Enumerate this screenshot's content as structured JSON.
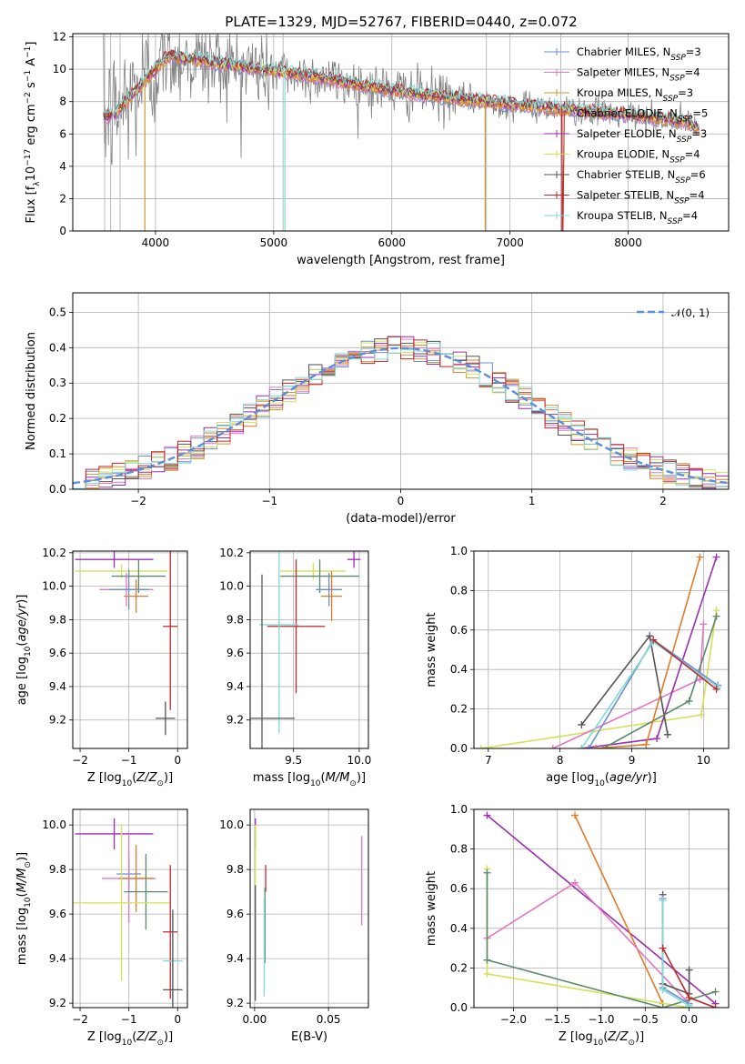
{
  "figure": {
    "title": "PLATE=1329, MJD=52767, FIBERID=0440, z=0.072"
  },
  "legend": {
    "entries": [
      {
        "pre": "Chabrier MILES, N",
        "sub": "SSP",
        "post": "=3",
        "color": "#6a8fcf"
      },
      {
        "pre": "Salpeter MILES, N",
        "sub": "SSP",
        "post": "=4",
        "color": "#e377c2"
      },
      {
        "pre": "Kroupa MILES, N",
        "sub": "SSP",
        "post": "=3",
        "color": "#c89a2e"
      },
      {
        "pre": "Chabrier ELODIE, N",
        "sub": "SSP",
        "post": "=5",
        "color": "#e07b2a"
      },
      {
        "pre": "Salpeter ELODIE, N",
        "sub": "SSP",
        "post": "=3",
        "color": "#9a2fb0"
      },
      {
        "pre": "Kroupa ELODIE, N",
        "sub": "SSP",
        "post": "=4",
        "color": "#d4e157"
      },
      {
        "pre": "Chabrier STELIB, N",
        "sub": "SSP",
        "post": "=6",
        "color": "#555555"
      },
      {
        "pre": "Salpeter STELIB, N",
        "sub": "SSP",
        "post": "=4",
        "color": "#c0282d"
      },
      {
        "pre": "Kroupa STELIB, N",
        "sub": "SSP",
        "post": "=4",
        "color": "#7fdad8"
      }
    ],
    "gauss_label": "𝒩(0, 1)"
  },
  "colors": {
    "data": "#808080",
    "gauss": "#5b8fd9",
    "grid": "#b0b0b0",
    "green": "#5a8a6a"
  },
  "chart_data": [
    {
      "id": "spectrum",
      "type": "line",
      "title": "PLATE=1329, MJD=52767, FIBERID=0440, z=0.072",
      "xlabel": "wavelength [Angstrom, rest frame]",
      "ylabel": "Flux [fλ10⁻¹⁷ erg cm⁻² s⁻¹ A⁻¹]",
      "xlim": [
        3300,
        8850
      ],
      "ylim": [
        0,
        12.2
      ],
      "xticks": [
        4000,
        5000,
        6000,
        7000,
        8000
      ],
      "yticks": [
        0,
        2,
        4,
        6,
        8,
        10,
        12
      ],
      "model_continuum": [
        [
          3550,
          7.0
        ],
        [
          3650,
          7.2
        ],
        [
          3800,
          8.4
        ],
        [
          3950,
          9.6
        ],
        [
          4100,
          10.8
        ],
        [
          4300,
          10.6
        ],
        [
          4500,
          10.4
        ],
        [
          4800,
          10.1
        ],
        [
          5000,
          9.9
        ],
        [
          5300,
          9.6
        ],
        [
          5600,
          9.2
        ],
        [
          6000,
          8.7
        ],
        [
          6400,
          8.3
        ],
        [
          6800,
          8.0
        ],
        [
          7200,
          7.7
        ],
        [
          7500,
          7.5
        ],
        [
          7800,
          7.3
        ],
        [
          8200,
          7.0
        ],
        [
          8500,
          6.7
        ],
        [
          8600,
          6.3
        ]
      ],
      "grid": true,
      "legend_position": "upper right"
    },
    {
      "id": "residuals",
      "type": "line",
      "xlabel": "(data-model)/error",
      "ylabel": "Normed distribution",
      "xlim": [
        -2.5,
        2.5
      ],
      "ylim": [
        0,
        0.555
      ],
      "xticks": [
        -2,
        -1,
        0,
        1,
        2
      ],
      "yticks": [
        0.0,
        0.1,
        0.2,
        0.3,
        0.4,
        0.5
      ],
      "bin_width": 0.1,
      "grid": true,
      "legend_position": "upper right"
    },
    {
      "id": "age-vs-Z",
      "type": "scatter",
      "xlabel": "Z [log₁₀(Z/Z⊙)]",
      "ylabel": "age  [log₁₀(age/yr)]",
      "xlim": [
        -2.15,
        0.2
      ],
      "ylim": [
        9.03,
        10.21
      ],
      "xticks": [
        -2,
        -1,
        0
      ],
      "yticks": [
        9.2,
        9.4,
        9.6,
        9.8,
        10.0,
        10.2
      ],
      "points": [
        {
          "x": -1.3,
          "y": 10.16,
          "xerr": 0.8,
          "yerr": 0.05,
          "color": "#9a2fb0"
        },
        {
          "x": -1.15,
          "y": 10.09,
          "xerr": 0.95,
          "yerr": 0.04,
          "color": "#d4e157"
        },
        {
          "x": -0.8,
          "y": 10.06,
          "xerr": 0.55,
          "yerr": 0.1,
          "color": "#5a8a6a"
        },
        {
          "x": -1.05,
          "y": 9.98,
          "xerr": 0.55,
          "yerr": 0.1,
          "color": "#e377c2"
        },
        {
          "x": -1.0,
          "y": 9.98,
          "xerr": 0.4,
          "yerr": 0.12,
          "color": "#6a8fcf"
        },
        {
          "x": -0.85,
          "y": 9.94,
          "xerr": 0.25,
          "yerr": 0.1,
          "color": "#e07b2a"
        },
        {
          "x": -0.15,
          "y": 9.76,
          "xerr": 0.15,
          "yerr": 0.5,
          "color": "#c0282d"
        },
        {
          "x": -0.25,
          "y": 9.21,
          "xerr": 0.2,
          "yerr": 0.1,
          "color": "#555555"
        }
      ],
      "grid": true
    },
    {
      "id": "age-vs-mass",
      "type": "scatter",
      "xlabel": "mass [log₁₀(M/M⊙)]",
      "ylabel": "",
      "xlim": [
        9.17,
        10.07
      ],
      "ylim": [
        9.03,
        10.21
      ],
      "xticks": [
        9.5,
        10.0
      ],
      "yticks": [
        9.2,
        9.4,
        9.6,
        9.8,
        10.0,
        10.2
      ],
      "points": [
        {
          "x": 9.96,
          "y": 10.16,
          "xerr": 0.05,
          "yerr": 0.05,
          "color": "#9a2fb0"
        },
        {
          "x": 9.65,
          "y": 10.09,
          "xerr": 0.25,
          "yerr": 0.05,
          "color": "#d4e157"
        },
        {
          "x": 9.7,
          "y": 10.06,
          "xerr": 0.3,
          "yerr": 0.1,
          "color": "#5a8a6a"
        },
        {
          "x": 9.77,
          "y": 9.98,
          "xerr": 0.1,
          "yerr": 0.1,
          "color": "#6a8fcf"
        },
        {
          "x": 9.79,
          "y": 9.94,
          "xerr": 0.08,
          "yerr": 0.15,
          "color": "#e07b2a"
        },
        {
          "x": 9.52,
          "y": 9.76,
          "xerr": 0.22,
          "yerr": 0.4,
          "color": "#c0282d"
        },
        {
          "x": 9.39,
          "y": 9.77,
          "xerr": 0.15,
          "yerr": 0.65,
          "color": "#7fdad8"
        },
        {
          "x": 9.26,
          "y": 9.21,
          "xerr": 0.25,
          "yerr": 0.86,
          "color": "#555555"
        }
      ],
      "grid": true
    },
    {
      "id": "mass-weight-vs-age",
      "type": "line",
      "xlabel": "age  [log₁₀(age/yr)]",
      "ylabel": "mass weight",
      "xlim": [
        6.8,
        10.35
      ],
      "ylim": [
        0,
        1.0
      ],
      "xticks": [
        7,
        8,
        9,
        10
      ],
      "yticks": [
        0.0,
        0.2,
        0.4,
        0.6,
        0.8,
        1.0
      ],
      "series": [
        {
          "color": "#d4e157",
          "x": [
            6.9,
            9.97,
            10.18
          ],
          "y": [
            0.0,
            0.17,
            0.7
          ]
        },
        {
          "color": "#e377c2",
          "x": [
            7.9,
            9.95,
            10.0
          ],
          "y": [
            0.0,
            0.35,
            0.63
          ]
        },
        {
          "color": "#9a2fb0",
          "x": [
            8.3,
            9.35,
            10.18
          ],
          "y": [
            0.0,
            0.05,
            0.97
          ]
        },
        {
          "color": "#555555",
          "x": [
            8.3,
            9.25,
            9.5
          ],
          "y": [
            0.12,
            0.57,
            0.07
          ]
        },
        {
          "color": "#5a8a6a",
          "x": [
            8.6,
            9.8,
            10.18
          ],
          "y": [
            0.0,
            0.24,
            0.67
          ]
        },
        {
          "color": "#e07b2a",
          "x": [
            8.5,
            9.2,
            9.95
          ],
          "y": [
            0.0,
            0.02,
            0.97
          ]
        },
        {
          "color": "#6a8fcf",
          "x": [
            8.4,
            9.3,
            10.2
          ],
          "y": [
            0.0,
            0.55,
            0.32
          ]
        },
        {
          "color": "#7fdad8",
          "x": [
            8.3,
            9.3,
            10.2
          ],
          "y": [
            0.0,
            0.54,
            0.31
          ]
        },
        {
          "color": "#c0282d",
          "x": [
            9.3,
            10.18
          ],
          "y": [
            0.55,
            0.3
          ]
        }
      ],
      "grid": true
    },
    {
      "id": "mass-vs-Z",
      "type": "scatter",
      "xlabel": "Z [log₁₀(Z/Z⊙)]",
      "ylabel": "mass [log₁₀(M/M⊙)]",
      "xlim": [
        -2.15,
        0.2
      ],
      "ylim": [
        9.18,
        10.07
      ],
      "xticks": [
        -2,
        -1,
        0
      ],
      "yticks": [
        9.2,
        9.4,
        9.6,
        9.8,
        10.0
      ],
      "points": [
        {
          "x": -1.3,
          "y": 9.96,
          "xerr": 0.8,
          "yerr": 0.07,
          "color": "#9a2fb0"
        },
        {
          "x": -1.0,
          "y": 9.78,
          "xerr": 0.25,
          "yerr": 0.08,
          "color": "#6a8fcf"
        },
        {
          "x": -1.0,
          "y": 9.76,
          "xerr": 0.55,
          "yerr": 0.2,
          "color": "#e377c2"
        },
        {
          "x": -0.85,
          "y": 9.76,
          "xerr": 0.35,
          "yerr": 0.15,
          "color": "#e07b2a"
        },
        {
          "x": -0.65,
          "y": 9.7,
          "xerr": 0.45,
          "yerr": 0.17,
          "color": "#5a8a6a"
        },
        {
          "x": -1.15,
          "y": 9.65,
          "xerr": 1.0,
          "yerr": 0.35,
          "color": "#d4e157"
        },
        {
          "x": -0.15,
          "y": 9.52,
          "xerr": 0.15,
          "yerr": 0.3,
          "color": "#c0282d"
        },
        {
          "x": -0.1,
          "y": 9.39,
          "xerr": 0.2,
          "yerr": 0.2,
          "color": "#7fdad8"
        },
        {
          "x": -0.1,
          "y": 9.26,
          "xerr": 0.2,
          "yerr": 0.36,
          "color": "#555555"
        }
      ],
      "grid": true
    },
    {
      "id": "mass-vs-ebv",
      "type": "scatter",
      "xlabel": "E(B-V)",
      "ylabel": "",
      "xlim": [
        -0.003,
        0.077
      ],
      "ylim": [
        9.18,
        10.07
      ],
      "xticks": [
        0.0,
        0.05
      ],
      "yticks": [
        9.2,
        9.4,
        9.6,
        9.8,
        10.0
      ],
      "points": [
        {
          "x": 0.0005,
          "y": 9.96,
          "xerr": 0,
          "yerr": 0.07,
          "color": "#9a2fb0"
        },
        {
          "x": 0.0005,
          "y": 9.65,
          "xerr": 0,
          "yerr": 0.35,
          "color": "#d4e157"
        },
        {
          "x": 0.0005,
          "y": 9.47,
          "xerr": 0,
          "yerr": 0.26,
          "color": "#555555"
        },
        {
          "x": 0.0075,
          "y": 9.76,
          "xerr": 0,
          "yerr": 0.06,
          "color": "#c0282d"
        },
        {
          "x": 0.007,
          "y": 9.55,
          "xerr": 0,
          "yerr": 0.17,
          "color": "#5a8a6a"
        },
        {
          "x": 0.0065,
          "y": 9.45,
          "xerr": 0,
          "yerr": 0.22,
          "color": "#7fdad8"
        },
        {
          "x": 0.0725,
          "y": 9.75,
          "xerr": 0,
          "yerr": 0.2,
          "color": "#e377c2"
        }
      ],
      "grid": true
    },
    {
      "id": "mass-weight-vs-Z",
      "type": "line",
      "xlabel": "Z [log₁₀(Z/Z⊙)]",
      "ylabel": "mass weight",
      "xlim": [
        -2.45,
        0.45
      ],
      "ylim": [
        0,
        1.0
      ],
      "xticks": [
        -2.0,
        -1.5,
        -1.0,
        -0.5,
        0.0
      ],
      "yticks": [
        0.0,
        0.2,
        0.4,
        0.6,
        0.8,
        1.0
      ],
      "series": [
        {
          "color": "#9a2fb0",
          "x": [
            -2.3,
            0.3
          ],
          "y": [
            0.97,
            0.02
          ]
        },
        {
          "color": "#e07b2a",
          "x": [
            -1.3,
            -0.3
          ],
          "y": [
            0.97,
            0.02
          ]
        },
        {
          "color": "#e377c2",
          "x": [
            -2.3,
            -1.3,
            0.0
          ],
          "y": [
            0.35,
            0.63,
            0.02
          ]
        },
        {
          "color": "#d4e157",
          "x": [
            -2.3,
            -2.3,
            0.0
          ],
          "y": [
            0.7,
            0.17,
            0.0
          ]
        },
        {
          "color": "#5a8a6a",
          "x": [
            -2.3,
            -2.3,
            -0.3,
            0.3
          ],
          "y": [
            0.68,
            0.24,
            0.0,
            0.08
          ]
        },
        {
          "color": "#555555",
          "x": [
            -0.3,
            -0.3,
            0.0,
            0.0
          ],
          "y": [
            0.57,
            0.12,
            0.07,
            0.19
          ]
        },
        {
          "color": "#6a8fcf",
          "x": [
            -0.3,
            -0.3,
            0.0
          ],
          "y": [
            0.55,
            0.1,
            0.02
          ]
        },
        {
          "color": "#7fdad8",
          "x": [
            -0.3,
            -0.3,
            0.0
          ],
          "y": [
            0.54,
            0.09,
            0.01
          ]
        },
        {
          "color": "#c0282d",
          "x": [
            -0.3,
            0.0,
            0.3
          ],
          "y": [
            0.3,
            0.05,
            0.0
          ]
        }
      ],
      "grid": true
    }
  ]
}
